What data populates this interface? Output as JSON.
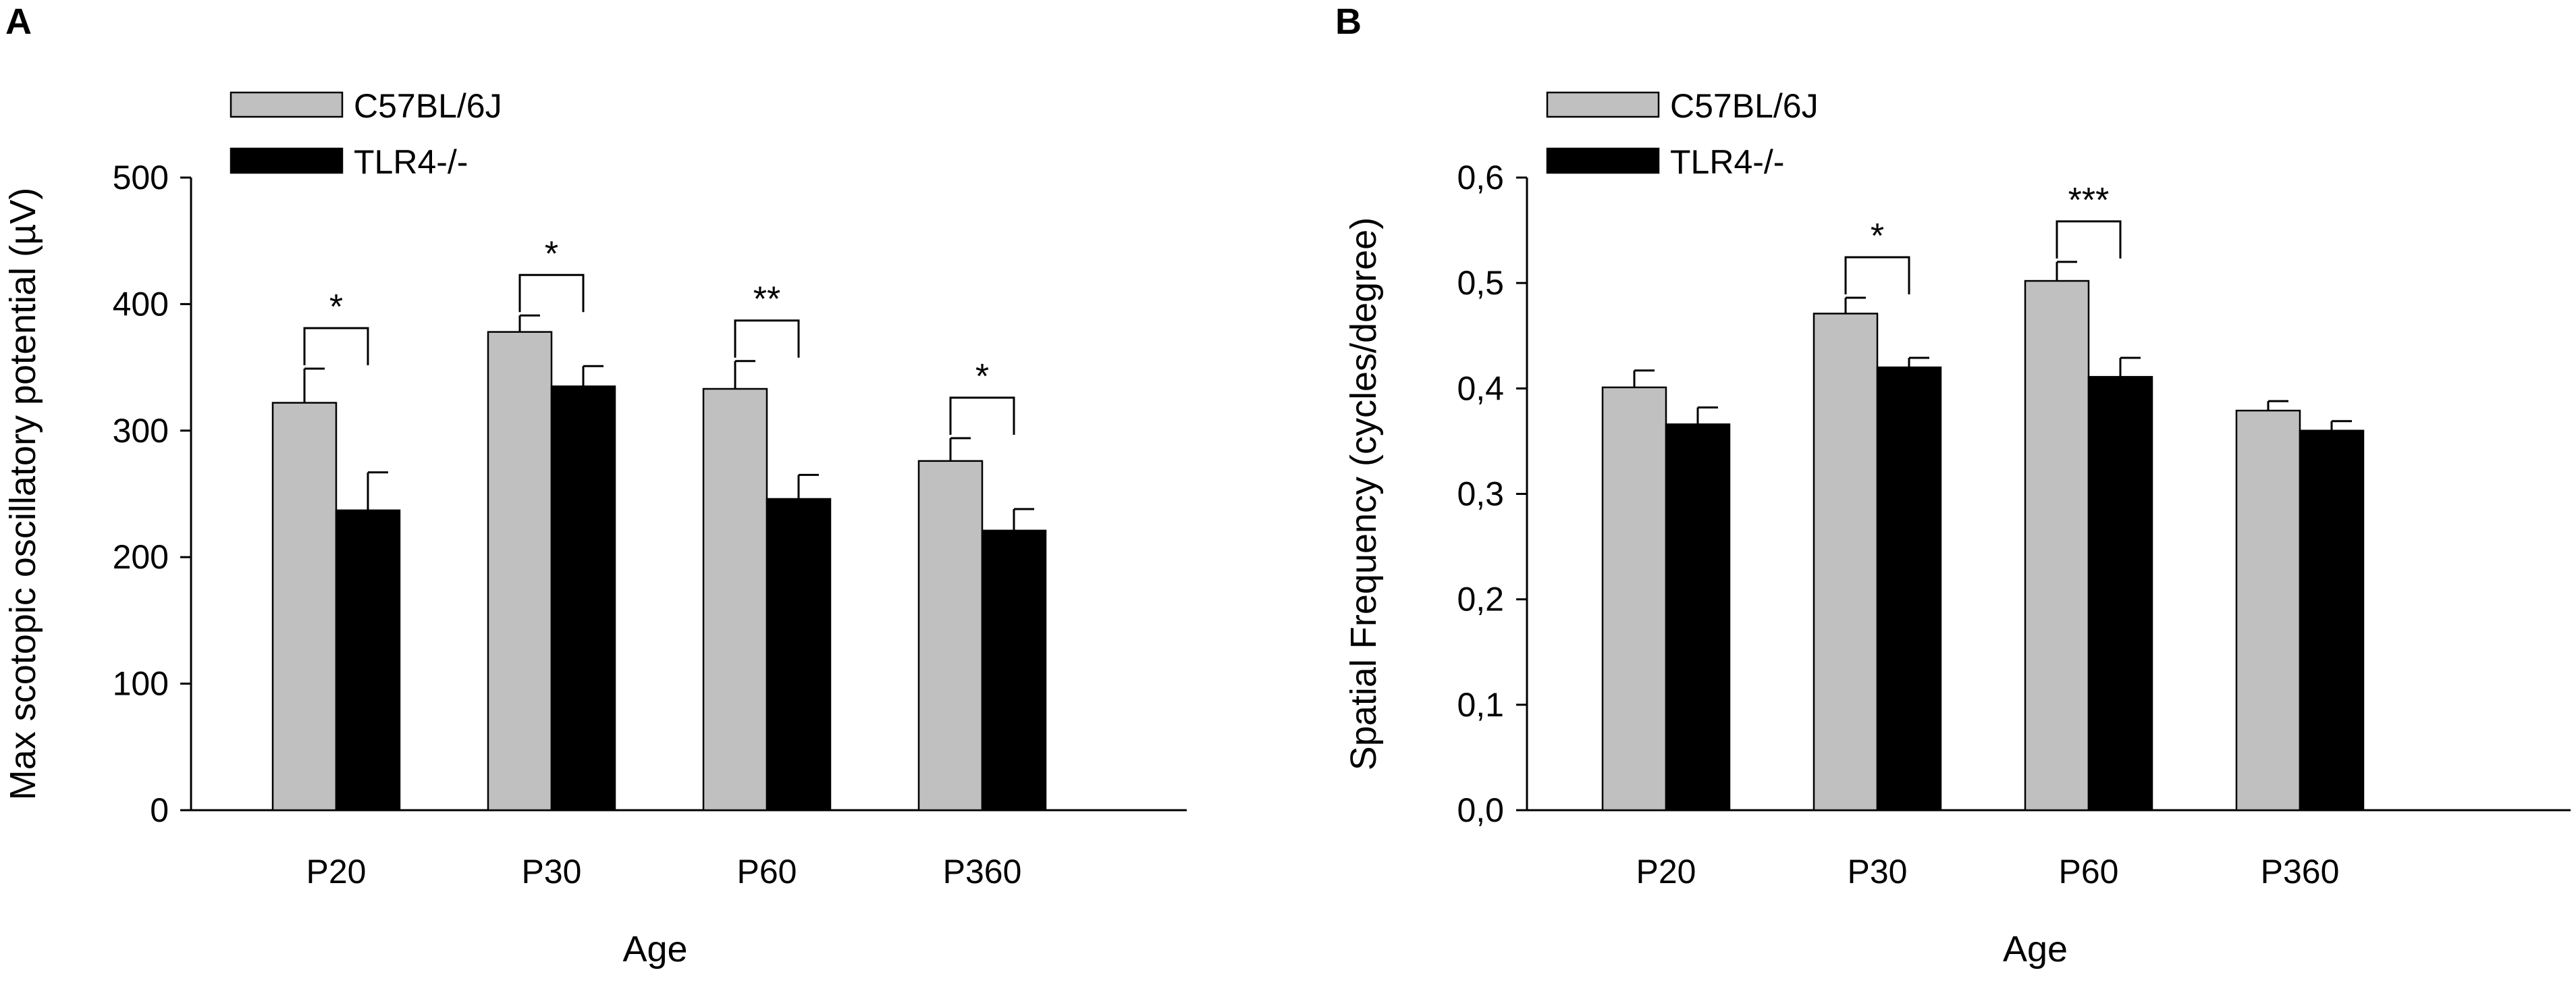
{
  "chart_data": [
    {
      "panel": "A",
      "type": "bar",
      "xlabel": "Age",
      "ylabel": "Max scotopic oscillatory potential (µV)",
      "ylim": [
        0,
        500
      ],
      "yticks": [
        0,
        100,
        200,
        300,
        400,
        500
      ],
      "ytick_labels": [
        "0",
        "100",
        "200",
        "300",
        "400",
        "500"
      ],
      "categories": [
        "P20",
        "P30",
        "P60",
        "P360"
      ],
      "series": [
        {
          "name": "C57BL/6J",
          "color": "#c0c0c0",
          "values": [
            322,
            378,
            333,
            276
          ],
          "errors": [
            27,
            13,
            22,
            18
          ]
        },
        {
          "name": "TLR4-/-",
          "color": "#000000",
          "values": [
            237,
            335,
            246,
            221
          ],
          "errors": [
            30,
            16,
            19,
            17
          ]
        }
      ],
      "significance": [
        "*",
        "*",
        "**",
        "*"
      ],
      "legend": "top-left"
    },
    {
      "panel": "B",
      "type": "bar",
      "xlabel": "Age",
      "ylabel": "Spatial Frequency (cycles/degree)",
      "ylim": [
        0,
        0.6
      ],
      "yticks": [
        0,
        0.1,
        0.2,
        0.3,
        0.4,
        0.5,
        0.6
      ],
      "ytick_labels": [
        "0,0",
        "0,1",
        "0,2",
        "0,3",
        "0,4",
        "0,5",
        "0,6"
      ],
      "categories": [
        "P20",
        "P30",
        "P60",
        "P360"
      ],
      "series": [
        {
          "name": "C57BL/6J",
          "color": "#c0c0c0",
          "values": [
            0.401,
            0.471,
            0.502,
            0.379
          ],
          "errors": [
            0.016,
            0.015,
            0.018,
            0.009
          ]
        },
        {
          "name": "TLR4-/-",
          "color": "#000000",
          "values": [
            0.366,
            0.42,
            0.411,
            0.36
          ],
          "errors": [
            0.016,
            0.009,
            0.018,
            0.009
          ]
        }
      ],
      "significance": [
        "",
        "*",
        "***",
        ""
      ],
      "legend": "top-left"
    }
  ]
}
